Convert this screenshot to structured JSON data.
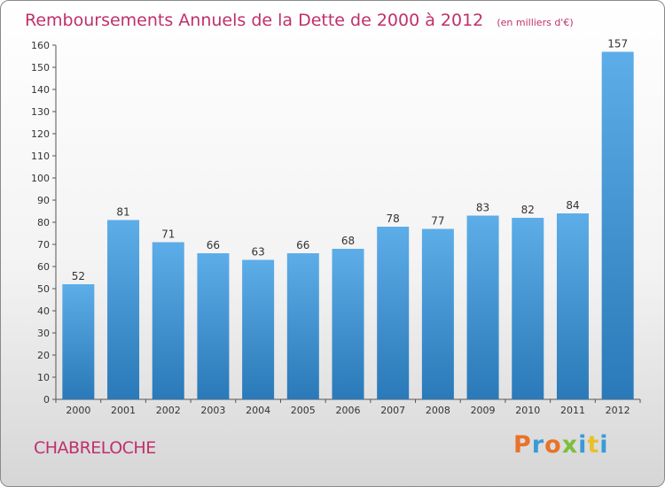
{
  "chart_data": {
    "type": "bar",
    "title": "Remboursements Annuels de la Dette de 2000 à 2012",
    "subtitle": "(en milliers d'€)",
    "categories": [
      "2000",
      "2001",
      "2002",
      "2003",
      "2004",
      "2005",
      "2006",
      "2007",
      "2008",
      "2009",
      "2010",
      "2011",
      "2012"
    ],
    "values": [
      52,
      81,
      71,
      66,
      63,
      66,
      68,
      78,
      77,
      83,
      82,
      84,
      157
    ],
    "ylim": [
      0,
      160
    ],
    "ytick_step": 10,
    "grid": false,
    "colors": {
      "bar_top": "#5dade8",
      "bar_bottom": "#2a79b8",
      "title": "#c0306a"
    }
  },
  "footer": {
    "commune": "CHABRELOCHE",
    "logo_text": "Proxiti",
    "logo_colors": [
      "#e8732a",
      "#3a9ad9",
      "#e8732a",
      "#7bbf3a",
      "#3a9ad9",
      "#e8c02a",
      "#3a9ad9"
    ]
  }
}
